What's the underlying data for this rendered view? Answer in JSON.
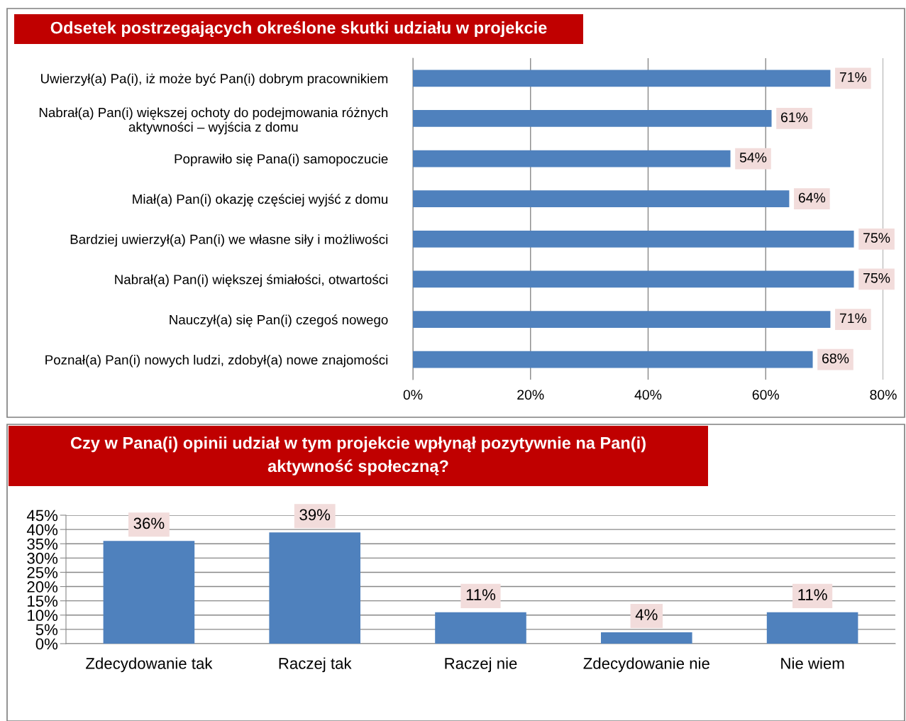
{
  "chart_data": [
    {
      "type": "bar",
      "orientation": "horizontal",
      "title": "Odsetek postrzegających określone skutki udziału w projekcie",
      "categories": [
        "Uwierzył(a) Pa(i), iż może być Pan(i) dobrym pracownikiem",
        "Nabrał(a) Pan(i) większej ochoty do podejmowania różnych\naktywności – wyjścia z domu",
        "Poprawiło się Pana(i) samopoczucie",
        "Miał(a) Pan(i) okazję częściej wyjść z domu",
        "Bardziej uwierzył(a) Pan(i) we własne siły i możliwości",
        "Nabrał(a) Pan(i) większej śmiałości, otwartości",
        "Nauczył(a) się Pan(i) czegoś nowego",
        "Poznał(a) Pan(i) nowych ludzi, zdobył(a) nowe znajomości"
      ],
      "values": [
        71,
        61,
        54,
        64,
        75,
        75,
        71,
        68
      ],
      "value_labels": [
        "71%",
        "61%",
        "54%",
        "64%",
        "75%",
        "75%",
        "71%",
        "68%"
      ],
      "color": "#4f81bd",
      "xlim": [
        0,
        80
      ],
      "xticks": [
        {
          "value": 0,
          "label": "0%"
        },
        {
          "value": 20,
          "label": "20%"
        },
        {
          "value": 40,
          "label": "40%"
        },
        {
          "value": 60,
          "label": "60%"
        },
        {
          "value": 80,
          "label": "80%"
        }
      ],
      "grid": "x"
    },
    {
      "type": "bar",
      "title": "Czy w Pana(i) opinii udział w tym projekcie wpłynął pozytywnie na Pan(i)\naktywność społeczną?",
      "categories": [
        "Zdecydowanie tak",
        "Raczej tak",
        "Raczej nie",
        "Zdecydowanie nie",
        "Nie wiem"
      ],
      "values": [
        36,
        39,
        11,
        4,
        11
      ],
      "value_labels": [
        "36%",
        "39%",
        "11%",
        "4%",
        "11%"
      ],
      "color": "#4f81bd",
      "ylim": [
        0,
        45
      ],
      "yticks": [
        {
          "value": 0,
          "label": "0%"
        },
        {
          "value": 5,
          "label": "5%"
        },
        {
          "value": 10,
          "label": "10%"
        },
        {
          "value": 15,
          "label": "15%"
        },
        {
          "value": 20,
          "label": "20%"
        },
        {
          "value": 25,
          "label": "25%"
        },
        {
          "value": 30,
          "label": "30%"
        },
        {
          "value": 35,
          "label": "35%"
        },
        {
          "value": 40,
          "label": "40%"
        },
        {
          "value": 45,
          "label": "45%"
        }
      ],
      "grid": "y"
    }
  ]
}
